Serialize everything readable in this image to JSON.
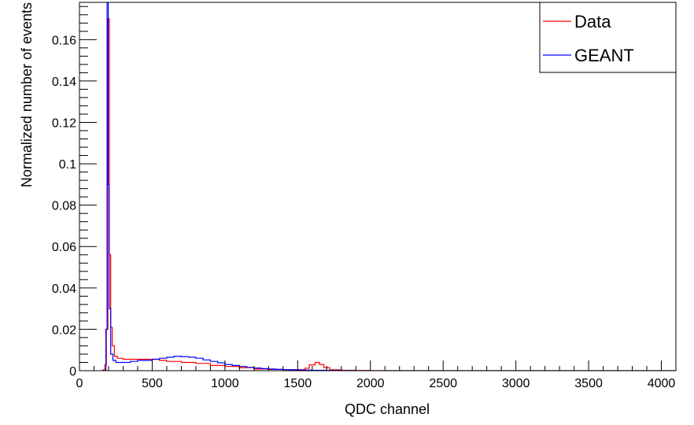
{
  "chart_data": {
    "type": "line",
    "xlabel": "QDC channel",
    "ylabel": "Normalized number of events",
    "xlim": [
      0,
      4100
    ],
    "ylim": [
      0,
      0.178
    ],
    "x_ticks": [
      0,
      500,
      1000,
      1500,
      2000,
      2500,
      3000,
      3500,
      4000
    ],
    "x_tick_labels": [
      "0",
      "500",
      "1000",
      "1500",
      "2000",
      "2500",
      "3000",
      "3500",
      "4000"
    ],
    "y_ticks": [
      0,
      0.02,
      0.04,
      0.06,
      0.08,
      0.1,
      0.12,
      0.14,
      0.16
    ],
    "y_tick_labels": [
      "0",
      "0.02",
      "0.04",
      "0.06",
      "0.08",
      "0.1",
      "0.12",
      "0.14",
      "0.16"
    ],
    "grid": false,
    "legend_position": "top-right",
    "series": [
      {
        "name": "Data",
        "color": "#ff0000",
        "points": [
          [
            150,
            0
          ],
          [
            165,
            0.0005
          ],
          [
            175,
            0.003
          ],
          [
            185,
            0.02
          ],
          [
            195,
            0.17
          ],
          [
            205,
            0.056
          ],
          [
            215,
            0.021
          ],
          [
            225,
            0.012
          ],
          [
            240,
            0.007
          ],
          [
            260,
            0.006
          ],
          [
            300,
            0.0055
          ],
          [
            350,
            0.0055
          ],
          [
            400,
            0.0055
          ],
          [
            450,
            0.0055
          ],
          [
            500,
            0.0055
          ],
          [
            550,
            0.005
          ],
          [
            600,
            0.0045
          ],
          [
            700,
            0.004
          ],
          [
            800,
            0.0035
          ],
          [
            900,
            0.0025
          ],
          [
            1000,
            0.002
          ],
          [
            1100,
            0.0015
          ],
          [
            1200,
            0.0008
          ],
          [
            1300,
            0.0006
          ],
          [
            1400,
            0.0005
          ],
          [
            1500,
            0.0005
          ],
          [
            1550,
            0.0012
          ],
          [
            1580,
            0.0028
          ],
          [
            1620,
            0.004
          ],
          [
            1650,
            0.003
          ],
          [
            1680,
            0.0015
          ],
          [
            1720,
            0.0004
          ],
          [
            1800,
            0.0002
          ],
          [
            1900,
            0.0001
          ],
          [
            2000,
            0
          ],
          [
            4100,
            0
          ]
        ]
      },
      {
        "name": "GEANT",
        "color": "#0000ff",
        "points": [
          [
            150,
            0
          ],
          [
            170,
            0
          ],
          [
            182,
            0.02
          ],
          [
            190,
            0.18
          ],
          [
            198,
            0.09
          ],
          [
            205,
            0.03
          ],
          [
            215,
            0.008
          ],
          [
            230,
            0.005
          ],
          [
            250,
            0.004
          ],
          [
            300,
            0.004
          ],
          [
            350,
            0.0045
          ],
          [
            400,
            0.005
          ],
          [
            450,
            0.005
          ],
          [
            500,
            0.0055
          ],
          [
            550,
            0.006
          ],
          [
            600,
            0.0065
          ],
          [
            650,
            0.007
          ],
          [
            700,
            0.0068
          ],
          [
            750,
            0.0065
          ],
          [
            800,
            0.006
          ],
          [
            850,
            0.0052
          ],
          [
            900,
            0.0045
          ],
          [
            950,
            0.0038
          ],
          [
            1000,
            0.003
          ],
          [
            1050,
            0.0025
          ],
          [
            1100,
            0.002
          ],
          [
            1150,
            0.0016
          ],
          [
            1200,
            0.0013
          ],
          [
            1250,
            0.001
          ],
          [
            1300,
            0.0008
          ],
          [
            1350,
            0.0006
          ],
          [
            1400,
            0.0005
          ],
          [
            1450,
            0.0004
          ],
          [
            1500,
            0.0003
          ],
          [
            1600,
            0.0002
          ],
          [
            1700,
            0.0001
          ],
          [
            1800,
            5e-05
          ],
          [
            1900,
            0
          ],
          [
            4100,
            0
          ]
        ]
      }
    ]
  }
}
